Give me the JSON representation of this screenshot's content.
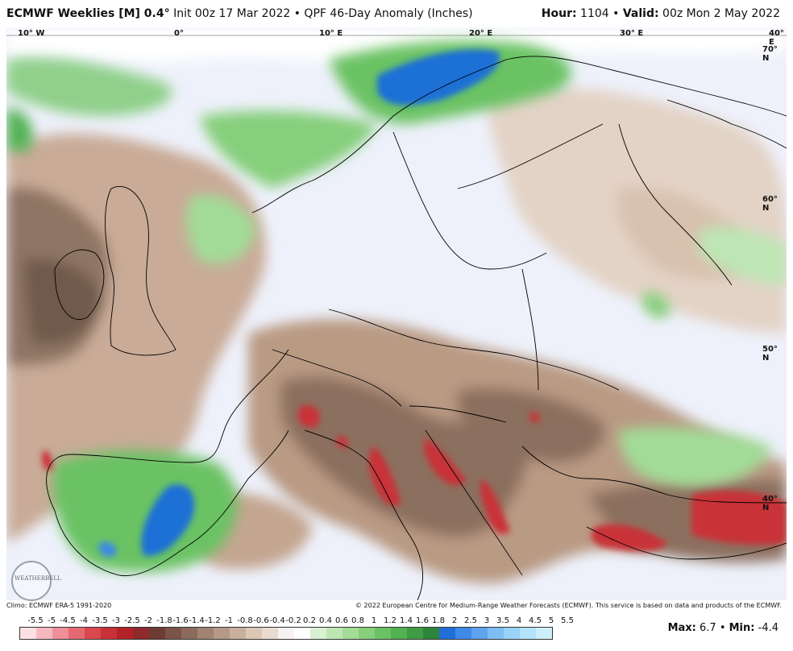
{
  "header": {
    "model": "ECMWF Weeklies [M] 0.4°",
    "desc": "Init 00z 17 Mar 2022 • QPF 46-Day Anomaly (Inches)",
    "hour_label": "Hour:",
    "hour_value": "1104",
    "valid_label": "Valid:",
    "valid_value": "00z Mon 2 May 2022"
  },
  "map": {
    "lon_labels": [
      "10° W",
      "0°",
      "10° E",
      "20° E",
      "30° E",
      "40° E"
    ],
    "lat_labels": [
      "70° N",
      "60° N",
      "50° N",
      "40° N"
    ],
    "logo_text": "WEATHERBELL"
  },
  "footer": {
    "climo": "Climo: ECMWF ERA-5 1991-2020",
    "copyright": "© 2022 European Centre for Medium-Range Weather Forecasts (ECMWF). This service is based on data and products of the ECMWF."
  },
  "colorbar": {
    "labels": [
      "-5.5",
      "-5",
      "-4.5",
      "-4",
      "-3.5",
      "-3",
      "-2.5",
      "-2",
      "-1.8",
      "-1.6",
      "-1.4",
      "-1.2",
      "-1",
      "-0.8",
      "-0.6",
      "-0.4",
      "-0.2",
      "0.2",
      "0.4",
      "0.6",
      "0.8",
      "1",
      "1.2",
      "1.4",
      "1.6",
      "1.8",
      "2",
      "2.5",
      "3",
      "3.5",
      "4",
      "4.5",
      "5",
      "5.5"
    ],
    "colors": [
      "#fde0e4",
      "#f6b8bf",
      "#ef8f99",
      "#e56973",
      "#d9474f",
      "#c93038",
      "#b42229",
      "#8e2a2c",
      "#6e3b34",
      "#7c5347",
      "#8c6b5c",
      "#a08372",
      "#b69a87",
      "#c9b09c",
      "#dcc7b5",
      "#eadbcf",
      "#f7f2ef",
      "#ffffff",
      "#d9f0d3",
      "#bde6b4",
      "#a2dc97",
      "#86cf7c",
      "#6ac264",
      "#52b152",
      "#3f9c45",
      "#2e853a",
      "#1f6fd6",
      "#3e8ae6",
      "#5fa3ef",
      "#7fbdf5",
      "#9ad3f8",
      "#b3e3fa",
      "#cdeffc"
    ]
  },
  "maxmin": {
    "max_label": "Max:",
    "max_value": "6.7",
    "min_label": "Min:",
    "min_value": "-4.4"
  }
}
